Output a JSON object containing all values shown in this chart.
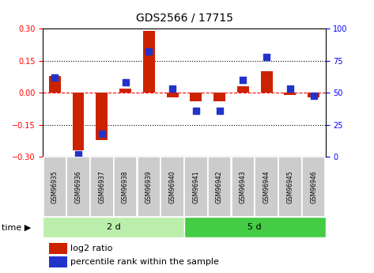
{
  "title": "GDS2566 / 17715",
  "samples": [
    "GSM96935",
    "GSM96936",
    "GSM96937",
    "GSM96938",
    "GSM96939",
    "GSM96940",
    "GSM96941",
    "GSM96942",
    "GSM96943",
    "GSM96944",
    "GSM96945",
    "GSM96946"
  ],
  "log2_ratio": [
    0.08,
    -0.27,
    -0.22,
    0.02,
    0.29,
    -0.02,
    -0.04,
    -0.04,
    0.03,
    0.1,
    -0.01,
    -0.02
  ],
  "percentile_rank": [
    62,
    2,
    18,
    58,
    82,
    53,
    36,
    36,
    60,
    78,
    53,
    48
  ],
  "group1_label": "2 d",
  "group2_label": "5 d",
  "group1_count": 6,
  "group2_count": 6,
  "ylim_left": [
    -0.3,
    0.3
  ],
  "ylim_right": [
    0,
    100
  ],
  "yticks_left": [
    -0.3,
    -0.15,
    0,
    0.15,
    0.3
  ],
  "yticks_right": [
    0,
    25,
    50,
    75,
    100
  ],
  "hline_dotted": [
    -0.15,
    0.15
  ],
  "hline_zero_color": "red",
  "bar_color": "#cc2200",
  "dot_color": "#2233cc",
  "bar_width": 0.5,
  "dot_size": 28,
  "legend_bar_label": "log2 ratio",
  "legend_dot_label": "percentile rank within the sample",
  "group1_bg_color": "#bbeeaa",
  "group2_bg_color": "#44cc44",
  "sample_bg_color": "#cccccc",
  "time_label": "time",
  "title_fontsize": 10,
  "tick_fontsize": 7,
  "label_fontsize": 8,
  "sample_fontsize": 5.5
}
